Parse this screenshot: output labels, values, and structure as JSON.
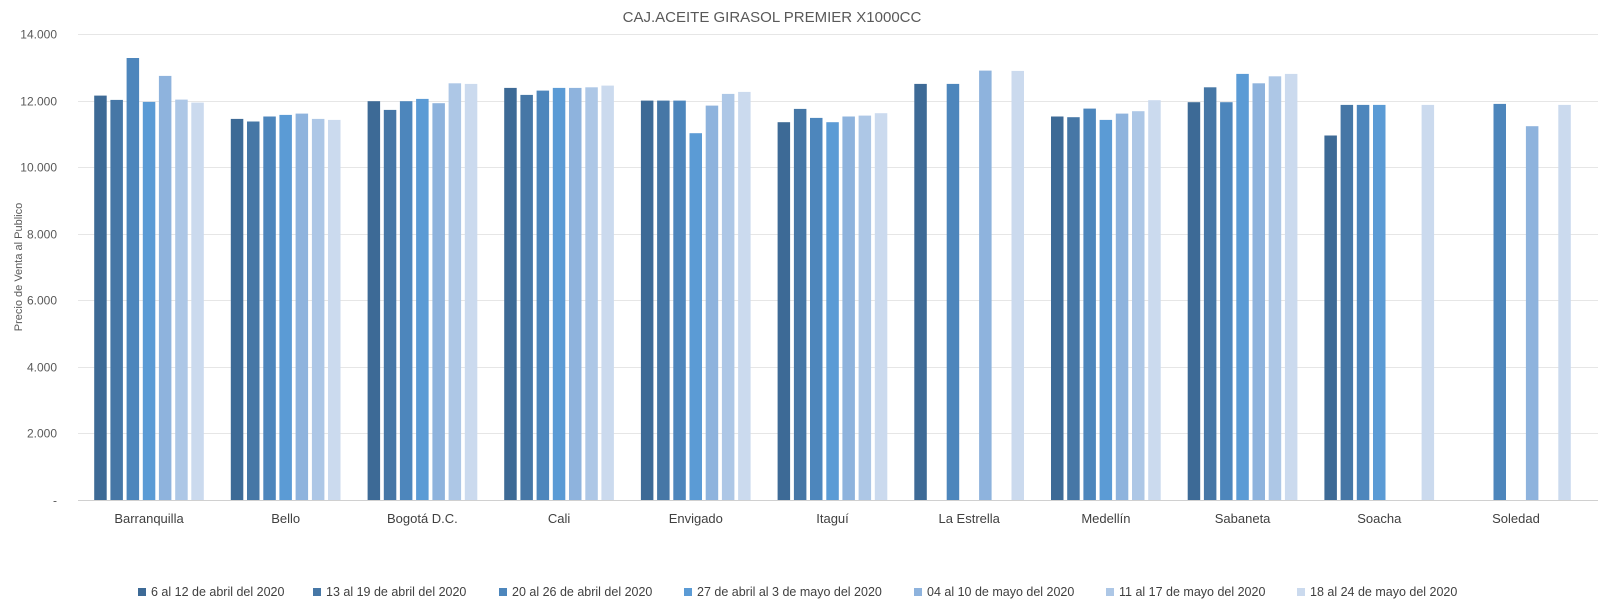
{
  "chart_data": {
    "type": "bar",
    "title": "CAJ.ACEITE GIRASOL PREMIER  X1000CC",
    "ylabel": "Precio de Venta al Publico",
    "xlabel": "",
    "ylim": [
      0,
      14000
    ],
    "y_ticks": [
      {
        "value": 0,
        "label": "-"
      },
      {
        "value": 2000,
        "label": "2.000"
      },
      {
        "value": 4000,
        "label": "4.000"
      },
      {
        "value": 6000,
        "label": "6.000"
      },
      {
        "value": 8000,
        "label": "8.000"
      },
      {
        "value": 10000,
        "label": "10.000"
      },
      {
        "value": 12000,
        "label": "12.000"
      },
      {
        "value": 14000,
        "label": "14.000"
      }
    ],
    "grid": true,
    "legend_position": "bottom",
    "categories": [
      "Barranquilla",
      "Bello",
      "Bogotá D.C.",
      "Cali",
      "Envigado",
      "Itaguí",
      "La Estrella",
      "Medellín",
      "Sabaneta",
      "Soacha",
      "Soledad"
    ],
    "series": [
      {
        "name": "6 al 12 de abril del 2020",
        "color": "#3d6a96",
        "values": [
          12150,
          11450,
          11980,
          12380,
          12000,
          11350,
          12500,
          11520,
          11950,
          10950,
          null
        ]
      },
      {
        "name": "13 al 19 de abril del 2020",
        "color": "#4677a6",
        "values": [
          12020,
          11370,
          11720,
          12170,
          12000,
          11750,
          null,
          11500,
          12400,
          11870,
          null
        ]
      },
      {
        "name": "20 al 26 de abril del 2020",
        "color": "#4d86bc",
        "values": [
          13280,
          11520,
          11980,
          12300,
          12000,
          11480,
          12500,
          11760,
          11950,
          11870,
          11900
        ]
      },
      {
        "name": "27 de abril al 3 de mayo del 2020",
        "color": "#5b9bd5",
        "values": [
          11960,
          11570,
          12050,
          12380,
          11020,
          11350,
          null,
          11420,
          12800,
          11870,
          null
        ]
      },
      {
        "name": "04 al 10 de mayo del 2020",
        "color": "#8eb3dd",
        "values": [
          12740,
          11610,
          11920,
          12380,
          11850,
          11520,
          12900,
          11610,
          12520,
          null,
          11230
        ]
      },
      {
        "name": "11 al 17 de mayo del 2020",
        "color": "#adc7e6",
        "values": [
          12030,
          11450,
          12520,
          12400,
          12200,
          11550,
          null,
          11680,
          12730,
          null,
          null
        ]
      },
      {
        "name": "18 al 24 de mayo del 2020",
        "color": "#cbdaee",
        "values": [
          11940,
          11420,
          12500,
          12450,
          12260,
          11620,
          12890,
          12010,
          12800,
          11870,
          11870
        ]
      }
    ]
  }
}
